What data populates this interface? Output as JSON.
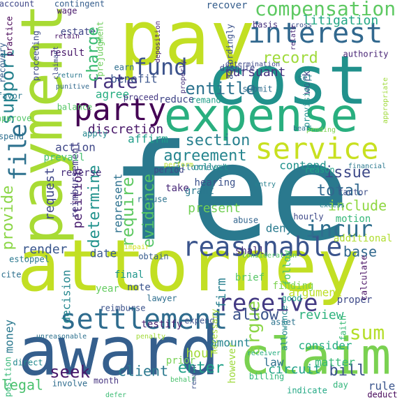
{
  "words": [
    {
      "text": "fee",
      "color": "#2a798e"
    },
    {
      "text": "attorney",
      "color": "#c2df23"
    },
    {
      "text": "pay",
      "color": "#c2df23"
    },
    {
      "text": "cost",
      "color": "#21918c"
    },
    {
      "text": "payment",
      "color": "#a8db34"
    },
    {
      "text": "award",
      "color": "#355f8d"
    },
    {
      "text": "expense",
      "color": "#29af7f"
    },
    {
      "text": "claim",
      "color": "#7ad151"
    },
    {
      "text": "interest",
      "color": "#31688e"
    },
    {
      "text": "party",
      "color": "#440154"
    },
    {
      "text": "service",
      "color": "#c8e020"
    },
    {
      "text": "settlement",
      "color": "#2f6c8e"
    },
    {
      "text": "reasonable",
      "color": "#3a548c"
    },
    {
      "text": "receive",
      "color": "#443a83"
    },
    {
      "text": "compensation",
      "color": "#5ec962"
    },
    {
      "text": "file",
      "color": "#2d718e"
    },
    {
      "text": "fund",
      "color": "#3b528b"
    },
    {
      "text": "incur",
      "color": "#2e6e8e"
    },
    {
      "text": "entitle",
      "color": "#2c728e"
    },
    {
      "text": "rate",
      "color": "#46337e"
    },
    {
      "text": "support",
      "color": "#26828e"
    },
    {
      "text": "record",
      "color": "#9fda3a"
    },
    {
      "text": "litigation",
      "color": "#22a785"
    },
    {
      "text": "charge",
      "color": "#3dbc74"
    },
    {
      "text": "agreement",
      "color": "#25858e"
    },
    {
      "text": "section",
      "color": "#27808e"
    },
    {
      "text": "determine",
      "color": "#20928c"
    },
    {
      "text": "require",
      "color": "#5ec962"
    },
    {
      "text": "evidence",
      "color": "#54c568"
    },
    {
      "text": "issue",
      "color": "#3e4a89"
    },
    {
      "text": "total",
      "color": "#31688e"
    },
    {
      "text": "include",
      "color": "#90d743"
    },
    {
      "text": "provide",
      "color": "#8bd646"
    },
    {
      "text": "request",
      "color": "#3f4788"
    },
    {
      "text": "sum",
      "color": "#b5de2b"
    },
    {
      "text": "argue",
      "color": "#8bd646"
    },
    {
      "text": "allow",
      "color": "#3b528b"
    },
    {
      "text": "seek",
      "color": "#48186a"
    },
    {
      "text": "enter",
      "color": "#1fa088"
    },
    {
      "text": "bill",
      "color": "#3b528b"
    },
    {
      "text": "circuit",
      "color": "#1fa187"
    },
    {
      "text": "legal",
      "color": "#4ac16d"
    },
    {
      "text": "client",
      "color": "#2a788e"
    },
    {
      "text": "hour",
      "color": "#a2da37"
    },
    {
      "text": "amount",
      "color": "#25848e"
    },
    {
      "text": "firm",
      "color": "#277f8e"
    },
    {
      "text": "review",
      "color": "#2db27d"
    },
    {
      "text": "consider",
      "color": "#26ad81"
    },
    {
      "text": "matter",
      "color": "#38b977"
    },
    {
      "text": "law",
      "color": "#2d718e"
    },
    {
      "text": "rule",
      "color": "#3a548c"
    },
    {
      "text": "deduct",
      "color": "#46075a"
    },
    {
      "text": "base",
      "color": "#31688e"
    },
    {
      "text": "additional",
      "color": "#b0dd2f"
    },
    {
      "text": "motion",
      "color": "#35b779"
    },
    {
      "text": "hourly",
      "color": "#3e4989"
    },
    {
      "text": "deny",
      "color": "#297a8e"
    },
    {
      "text": "present",
      "color": "#73d056"
    },
    {
      "text": "represent",
      "color": "#2c718e"
    },
    {
      "text": "petition",
      "color": "#481d6f"
    },
    {
      "text": "date",
      "color": "#38588c"
    },
    {
      "text": "render",
      "color": "#39568c"
    },
    {
      "text": "decision",
      "color": "#24878e"
    },
    {
      "text": "year",
      "color": "#63cb5f"
    },
    {
      "text": "reimbursement",
      "color": "#443b84"
    },
    {
      "text": "money",
      "color": "#2a788e"
    },
    {
      "text": "discretion",
      "color": "#481769"
    },
    {
      "text": "affirm",
      "color": "#1e9d89"
    },
    {
      "text": "agree",
      "color": "#27ad81"
    },
    {
      "text": "reduce",
      "color": "#404688"
    },
    {
      "text": "benefit",
      "color": "#3a548c"
    },
    {
      "text": "pursuant",
      "color": "#45337d"
    },
    {
      "text": "work",
      "color": "#3f4889"
    },
    {
      "text": "action",
      "color": "#3f4788"
    },
    {
      "text": "reverse",
      "color": "#472d7b"
    },
    {
      "text": "result",
      "color": "#48186a"
    },
    {
      "text": "estate",
      "color": "#404688"
    },
    {
      "text": "charge",
      "color": "#3dbc74"
    },
    {
      "text": "hearing",
      "color": "#3b518b"
    },
    {
      "text": "attorneys'",
      "color": "#2a788e"
    },
    {
      "text": "contend",
      "color": "#20928c"
    },
    {
      "text": "prevail",
      "color": "#44bf70"
    },
    {
      "text": "take",
      "color": "#482878"
    },
    {
      "text": "shall",
      "color": "#472c7a"
    },
    {
      "text": "final",
      "color": "#1f968b"
    },
    {
      "text": "note",
      "color": "#3a548c"
    },
    {
      "text": "brief",
      "color": "#56c667"
    },
    {
      "text": "follow",
      "color": "#48c16e"
    },
    {
      "text": "argument",
      "color": "#bddf26"
    },
    {
      "text": "finding",
      "color": "#7cd250"
    },
    {
      "text": "proper",
      "color": "#3e4a89"
    },
    {
      "text": "testify",
      "color": "#482071"
    },
    {
      "text": "prior",
      "color": "#77d153"
    },
    {
      "text": "however",
      "color": "#9dd93b"
    },
    {
      "text": "submit",
      "color": "#2e6d8e"
    },
    {
      "text": "balance",
      "color": "#56c667"
    },
    {
      "text": "earn",
      "color": "#2e6e8e"
    },
    {
      "text": "wage",
      "color": "#481a6c"
    },
    {
      "text": "account",
      "color": "#3f4889"
    },
    {
      "text": "recover",
      "color": "#355e8d"
    },
    {
      "text": "basis",
      "color": "#46307e"
    },
    {
      "text": "set",
      "color": "#287c8e"
    },
    {
      "text": "month",
      "color": "#463480"
    },
    {
      "text": "involve",
      "color": "#2f6c8e"
    },
    {
      "text": "day",
      "color": "#31b57b"
    },
    {
      "text": "cite",
      "color": "#2d708e"
    },
    {
      "text": "spend",
      "color": "#2e6f8e"
    },
    {
      "text": "approve",
      "color": "#52c569"
    },
    {
      "text": "expend",
      "color": "#3b528b"
    },
    {
      "text": "asset",
      "color": "#2c738e"
    },
    {
      "text": "calculate",
      "color": "#471063"
    },
    {
      "text": "reimburse",
      "color": "#3b528b"
    },
    {
      "text": "lawyer",
      "color": "#2e6f8e"
    },
    {
      "text": "dispute",
      "color": "#3e4989"
    },
    {
      "text": "remand",
      "color": "#1f9e89"
    },
    {
      "text": "collect",
      "color": "#20938c"
    },
    {
      "text": "reason",
      "color": "#20a486"
    },
    {
      "text": "grant",
      "color": "#2a778e"
    },
    {
      "text": "factor",
      "color": "#3d4e8a"
    },
    {
      "text": "penalty",
      "color": "#a2da37"
    },
    {
      "text": "position",
      "color": "#37b878"
    },
    {
      "text": "direct",
      "color": "#23898e"
    },
    {
      "text": "practice",
      "color": "#440154"
    },
    {
      "text": "recovery",
      "color": "#365c8d"
    },
    {
      "text": "favor",
      "color": "#2a788e"
    },
    {
      "text": "proceed",
      "color": "#453882"
    },
    {
      "text": "apply",
      "color": "#24878e"
    },
    {
      "text": "period",
      "color": "#3f4788"
    },
    {
      "text": "refuse",
      "color": "#2c738e"
    },
    {
      "text": "necessary",
      "color": "#a5db36"
    },
    {
      "text": "good",
      "color": "#1fa088"
    },
    {
      "text": "allowance",
      "color": "#23888e"
    },
    {
      "text": "faith",
      "color": "#3aba76"
    },
    {
      "text": "indicate",
      "color": "#22a884"
    },
    {
      "text": "billing",
      "color": "#30b47c"
    },
    {
      "text": "abuse",
      "color": "#32658e"
    },
    {
      "text": "contingent",
      "color": "#355e8d"
    },
    {
      "text": "prejudgment",
      "color": "#6ccd5a"
    },
    {
      "text": "accordingly",
      "color": "#3b528b"
    },
    {
      "text": "authority",
      "color": "#482475"
    },
    {
      "text": "determination",
      "color": "#3e4989"
    },
    {
      "text": "appropriate",
      "color": "#9fda3a"
    },
    {
      "text": "unreasonable",
      "color": "#2d718e"
    },
    {
      "text": "impair",
      "color": "#d0e11c"
    },
    {
      "text": "obtain",
      "color": "#365c8d"
    },
    {
      "text": "perform",
      "color": "#b8de29"
    },
    {
      "text": "excess",
      "color": "#26828e"
    },
    {
      "text": "estoppel",
      "color": "#2a788e"
    },
    {
      "text": "retain",
      "color": "#481467"
    },
    {
      "text": "provision",
      "color": "#21918c"
    },
    {
      "text": "cross",
      "color": "#3b528b"
    },
    {
      "text": "relate",
      "color": "#482878"
    },
    {
      "text": "financial",
      "color": "#2a788e"
    },
    {
      "text": "claimant",
      "color": "#3f4788"
    },
    {
      "text": "proceeding",
      "color": "#3e4a89"
    },
    {
      "text": "behalf",
      "color": "#4ac16d"
    },
    {
      "text": "consideration",
      "color": "#52c569"
    },
    {
      "text": "entry",
      "color": "#27808e"
    },
    {
      "text": "punitive",
      "color": "#31688e"
    },
    {
      "text": "remain",
      "color": "#3b528b"
    },
    {
      "text": "defer",
      "color": "#3dbc74"
    },
    {
      "text": "properly",
      "color": "#46327e"
    },
    {
      "text": "return",
      "color": "#2a788e"
    },
    {
      "text": "pending",
      "color": "#7cd250"
    },
    {
      "text": "receiver",
      "color": "#27ad81"
    },
    {
      "text": "bear",
      "color": "#2c738e"
    },
    {
      "text": "deposition",
      "color": "#482071"
    }
  ]
}
